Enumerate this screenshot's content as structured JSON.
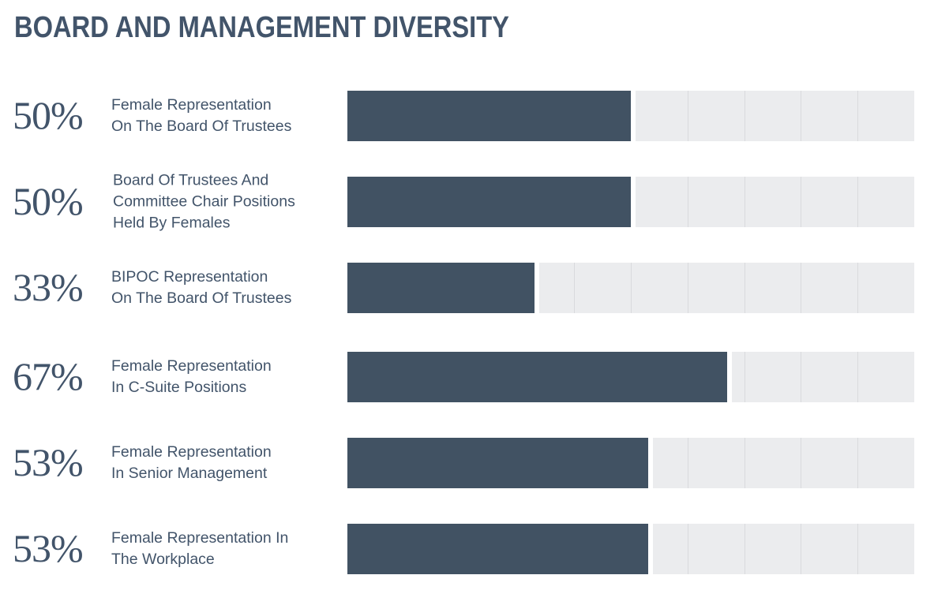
{
  "title": "BOARD AND MANAGEMENT DIVERSITY",
  "chart_data": {
    "type": "bar",
    "orientation": "horizontal",
    "title": "BOARD AND MANAGEMENT DIVERSITY",
    "xlim": [
      0,
      100
    ],
    "grid": true,
    "categories": [
      "Female Representation On The Board Of Trustees",
      "Board Of Trustees And Committee Chair Positions Held By Females",
      "BIPOC Representation On The Board Of Trustees",
      "Female Representation In C-Suite Positions",
      "Female Representation In Senior Management",
      "Female Representation In The Workplace"
    ],
    "values": [
      50,
      50,
      33,
      67,
      53,
      53
    ],
    "value_labels": [
      "50%",
      "50%",
      "33%",
      "67%",
      "53%",
      "53%"
    ],
    "label_lines": [
      [
        "Female Representation",
        "On The Board Of Trustees"
      ],
      [
        "Board Of Trustees And",
        "Committee Chair Positions",
        "Held By Females"
      ],
      [
        "BIPOC Representation",
        "On The Board Of Trustees"
      ],
      [
        "Female Representation",
        "In C-Suite Positions"
      ],
      [
        "Female Representation",
        "In Senior Management"
      ],
      [
        "Female Representation In",
        "The Workplace"
      ]
    ],
    "colors": {
      "bar": "#415263",
      "track": "#ebecee",
      "text": "#42546a"
    }
  }
}
